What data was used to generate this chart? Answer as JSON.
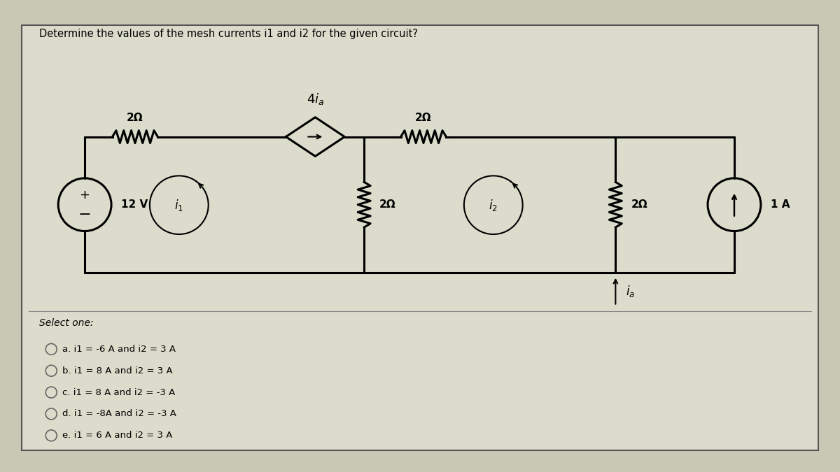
{
  "background_color": "#c8c8b4",
  "panel_color": "#dcdccc",
  "question_text": "Determine the values of the mesh currents i1 and i2 for the given circuit?",
  "options": [
    "a. i1 = -6 A and i2 = 3 A",
    "b. i1 = 8 A and i2 = 3 A",
    "c. i1 = 8 A and i2 = -3 A",
    "d. i1 = -8A and i2 = -3 A",
    "e. i1 = 6 A and i2 = 3 A"
  ],
  "select_one": "Select one:",
  "voltage_source": "12 V",
  "current_source": "1 A",
  "dep_source_label": "$4i_a$",
  "res_label": "2Ω",
  "mesh1_label": "$i_1$",
  "mesh2_label": "$i_2$",
  "ia_label": "$i_a$",
  "TL": [
    1.2,
    4.8
  ],
  "TML": [
    3.8,
    4.8
  ],
  "TM": [
    5.2,
    4.8
  ],
  "TR": [
    8.8,
    4.8
  ],
  "TFR": [
    10.5,
    4.8
  ],
  "BL": [
    1.2,
    2.85
  ],
  "BM": [
    5.2,
    2.85
  ],
  "BMR": [
    8.8,
    2.85
  ],
  "BFR": [
    10.5,
    2.85
  ]
}
